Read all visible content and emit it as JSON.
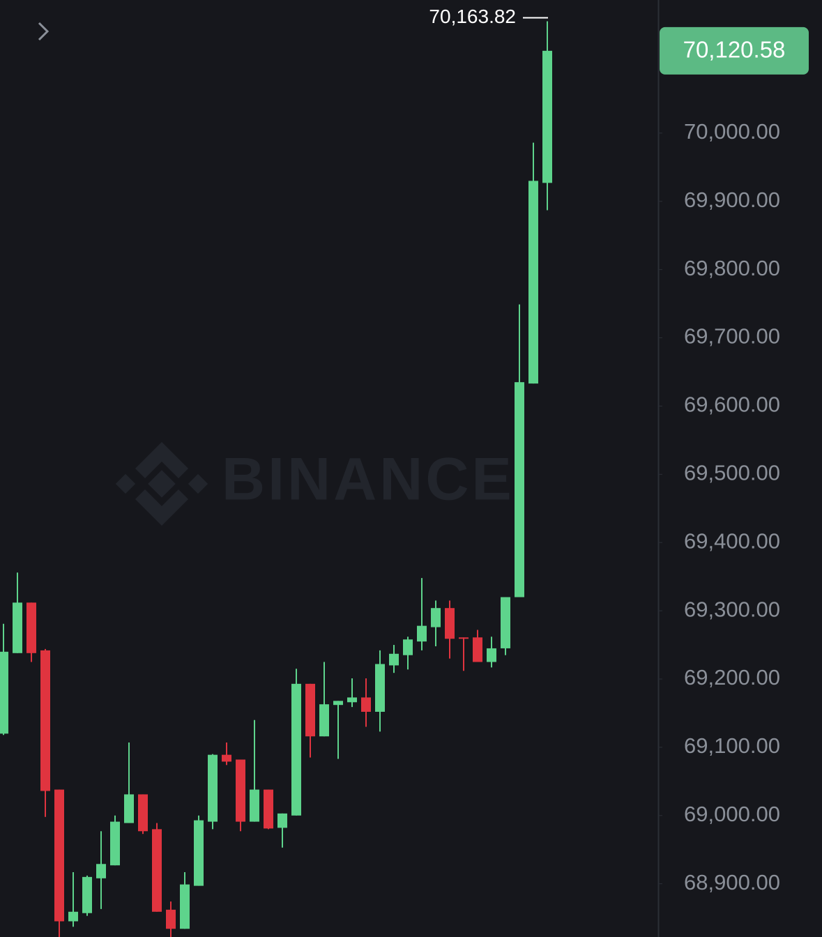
{
  "chart_data": {
    "type": "candlestick",
    "watermark": "BINANCE",
    "up_color": "#5ed48c",
    "down_color": "#e0343f",
    "ylim": [
      68822,
      70195
    ],
    "yticks": [
      {
        "value": 68900,
        "label": "68,900.00"
      },
      {
        "value": 69000,
        "label": "69,000.00"
      },
      {
        "value": 69100,
        "label": "69,100.00"
      },
      {
        "value": 69200,
        "label": "69,200.00"
      },
      {
        "value": 69300,
        "label": "69,300.00"
      },
      {
        "value": 69400,
        "label": "69,400.00"
      },
      {
        "value": 69500,
        "label": "69,500.00"
      },
      {
        "value": 69600,
        "label": "69,600.00"
      },
      {
        "value": 69700,
        "label": "69,700.00"
      },
      {
        "value": 69800,
        "label": "69,800.00"
      },
      {
        "value": 69900,
        "label": "69,900.00"
      },
      {
        "value": 70000,
        "label": "70,000.00"
      }
    ],
    "high_marker": {
      "value": 70163.82,
      "label": "70,163.82"
    },
    "price_tag": {
      "value": 70120.58,
      "label": "70,120.58"
    },
    "open": [
      69120,
      69238,
      69312,
      69242,
      69038,
      68845,
      68857,
      68908,
      68927,
      68989,
      69031,
      68980,
      68862,
      68834,
      68897,
      68991,
      69089,
      69082,
      68991,
      69038,
      68982,
      69000,
      69193,
      69116,
      69162,
      69166,
      69173,
      69152,
      69220,
      69235,
      69255,
      69276,
      69304,
      69261,
      69261,
      69225,
      69245,
      69320,
      69633,
      69927
    ],
    "high": [
      69281,
      69356,
      69312,
      69244,
      69038,
      68917,
      68912,
      68977,
      69000,
      69107,
      69031,
      68989,
      68874,
      68917,
      69000,
      69090,
      69107,
      69082,
      69140,
      69038,
      69003,
      69215,
      69193,
      69225,
      69168,
      69201,
      69201,
      69242,
      69250,
      69262,
      69348,
      69315,
      69315,
      69261,
      69272,
      69262,
      69320,
      69749,
      69986,
      70163.82
    ],
    "low": [
      69118,
      69238,
      69225,
      68998,
      68822,
      68837,
      68853,
      68863,
      68927,
      68989,
      68973,
      68859,
      68822,
      68834,
      68897,
      68980,
      69074,
      68977,
      68991,
      68980,
      68953,
      69000,
      69085,
      69116,
      69083,
      69159,
      69130,
      69123,
      69209,
      69214,
      69242,
      69248,
      69230,
      69212,
      69225,
      69217,
      69235,
      69320,
      69633,
      69887
    ],
    "close": [
      69240,
      69312,
      69238,
      69036,
      68845,
      68859,
      68910,
      68929,
      68991,
      69031,
      68977,
      68859,
      68834,
      68899,
      68993,
      69089,
      69079,
      68991,
      69038,
      68981,
      69003,
      69193,
      69116,
      69163,
      69168,
      69173,
      69152,
      69222,
      69237,
      69258,
      69278,
      69304,
      69259,
      69259,
      69225,
      69245,
      69320,
      69635,
      69930,
      70120.58
    ]
  }
}
